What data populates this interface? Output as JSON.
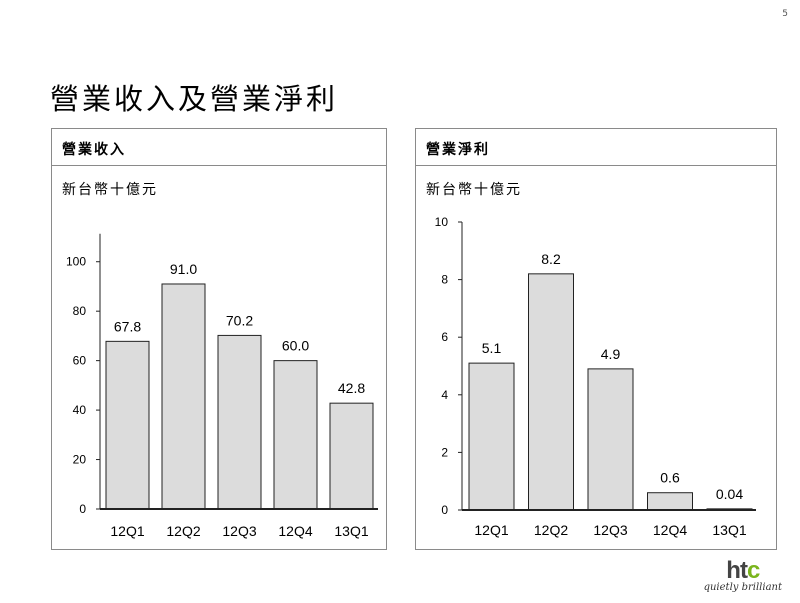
{
  "page_number": "5",
  "slide_title": "營業收入及營業淨利",
  "logo": {
    "mark_a": "ht",
    "mark_b": "c",
    "tagline": "quietly brilliant"
  },
  "colors": {
    "bar_fill": "#dcdcdc",
    "bar_stroke": "#222222",
    "brand_green": "#7ab51d"
  },
  "chart_data": [
    {
      "type": "bar",
      "title": "營業收入",
      "unit": "新台幣十億元",
      "categories": [
        "12Q1",
        "12Q2",
        "12Q3",
        "12Q4",
        "13Q1"
      ],
      "values": [
        67.8,
        91.0,
        70.2,
        60.0,
        42.8
      ],
      "value_labels": [
        "67.8",
        "91.0",
        "70.2",
        "60.0",
        "42.8"
      ],
      "yticks": [
        0,
        20,
        40,
        60,
        80,
        100
      ],
      "ylim": [
        0,
        110
      ],
      "grid": false,
      "legend": "none"
    },
    {
      "type": "bar",
      "title": "營業淨利",
      "unit": "新台幣十億元",
      "categories": [
        "12Q1",
        "12Q2",
        "12Q3",
        "12Q4",
        "13Q1"
      ],
      "values": [
        5.1,
        8.2,
        4.9,
        0.6,
        0.04
      ],
      "value_labels": [
        "5.1",
        "8.2",
        "4.9",
        "0.6",
        "0.04"
      ],
      "yticks": [
        0,
        2,
        4,
        6,
        8,
        10
      ],
      "ylim": [
        0,
        10
      ],
      "grid": false,
      "legend": "none"
    }
  ]
}
